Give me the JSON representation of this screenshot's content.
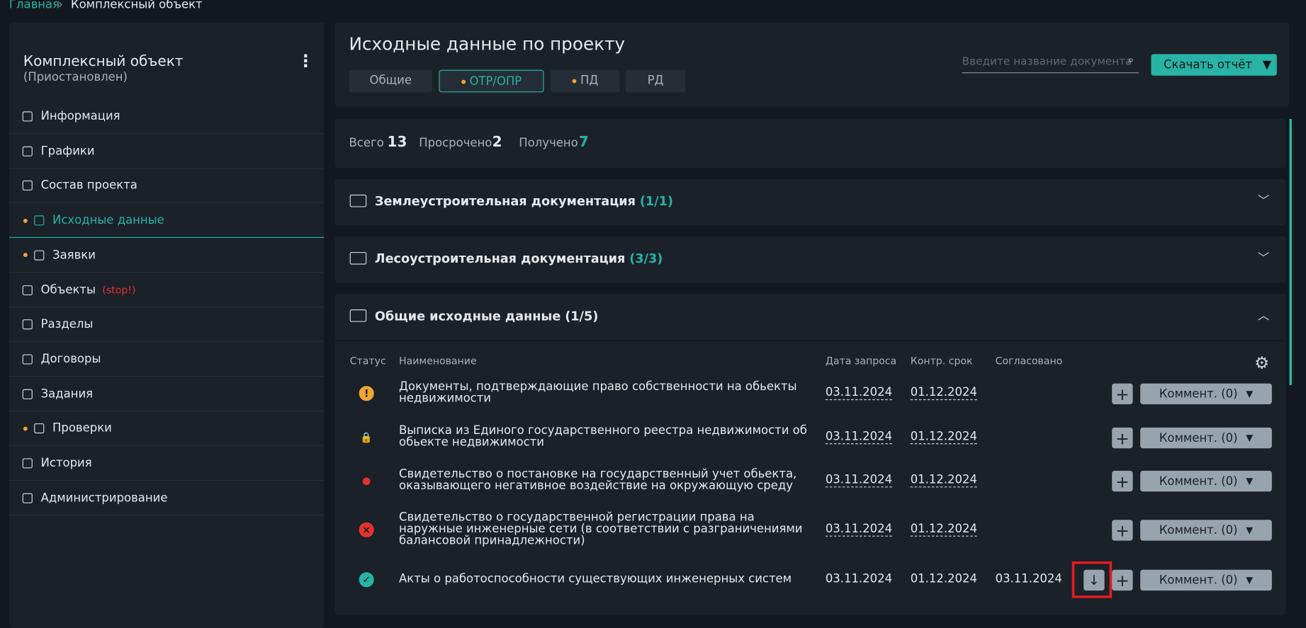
{
  "breadcrumb": [
    "Главная",
    "Комплексный объект"
  ],
  "sidebar": {
    "title": "Комплексный объект",
    "status": "(Приостановлен)",
    "menu": [
      {
        "label": "Информация"
      },
      {
        "label": "Графики"
      },
      {
        "label": "Состав проекта"
      },
      {
        "label": "Исходные данные",
        "dot": true,
        "active": true
      },
      {
        "label": "Заявки",
        "dot": true
      },
      {
        "label": "Объекты",
        "badge": "(stop!)"
      },
      {
        "label": "Разделы"
      },
      {
        "label": "Договоры"
      },
      {
        "label": "Задания"
      },
      {
        "label": "Проверки",
        "dot": true
      },
      {
        "label": "История"
      },
      {
        "label": "Администрирование"
      }
    ]
  },
  "header": {
    "title": "Исходные данные по проекту",
    "tabs": [
      {
        "label": "Общие"
      },
      {
        "label": "ОТР/ОПР",
        "dot": true,
        "active": true
      },
      {
        "label": "ПД",
        "dot": true
      },
      {
        "label": "РД"
      }
    ],
    "search_placeholder": "Введите название документа",
    "download": "Скачать отчёт"
  },
  "stats": [
    {
      "label": "Всего",
      "value": "13"
    },
    {
      "label": "Просрочено",
      "value": "2"
    },
    {
      "label": "Получено",
      "value": "7"
    }
  ],
  "sections": [
    {
      "title": "Землеустроительная документация",
      "count": "(1/1)"
    },
    {
      "title": "Лесоустроительная документация",
      "count": "(3/3)"
    },
    {
      "title": "Общие исходные данные",
      "count": "(1/5)"
    }
  ],
  "table": {
    "columns": [
      "Статус",
      "Наименование",
      "Дата запроса",
      "Контр. срок",
      "Согласовано"
    ],
    "rows": [
      {
        "name": "Документы, подтверждающие право собственности на обьекты недвижимости",
        "requested": "03.11.2024",
        "deadline": "01.12.2024",
        "comment": "Коммент. (0)"
      },
      {
        "name": "Выписка из Единого государственного реестра недвижимости об обьекте недвижимости",
        "requested": "03.11.2024",
        "deadline": "01.12.2024",
        "comment": "Коммент. (0)"
      },
      {
        "name": "Свидетельство о постановке на государственный учет обьекта, оказывающего негативное воздействие на окружающую среду",
        "requested": "03.11.2024",
        "deadline": "01.12.2024",
        "comment": "Коммент. (0)"
      },
      {
        "name": "Свидетельство о государственной регистрации права на наружные инженерные сети (в соответствии с разграничениями балансовой принадлежности)",
        "requested": "03.11.2024",
        "deadline": "01.12.2024",
        "comment": "Коммент. (0)"
      },
      {
        "name": "Акты о работоспособности существующих инженерных систем",
        "requested": "03.11.2024",
        "deadline": "01.12.2024",
        "approved": "03.11.2024",
        "comment": "Коммент. (0)"
      }
    ]
  }
}
